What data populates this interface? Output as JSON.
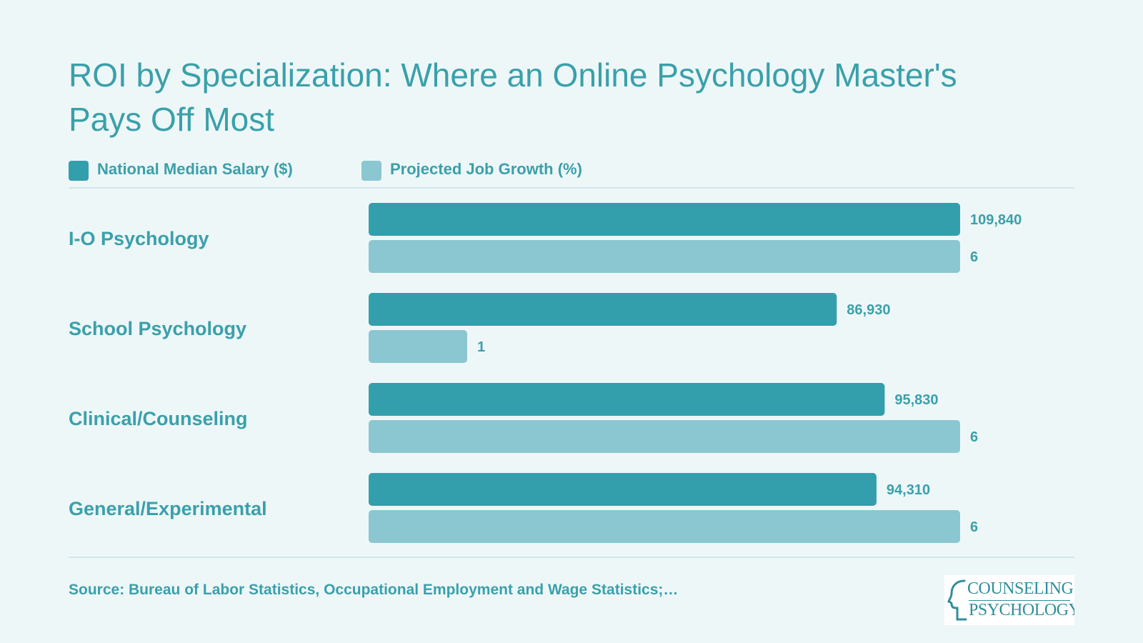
{
  "title": "ROI by Specialization: Where an Online Psychology Master's Pays Off Most",
  "legend": {
    "salary": "National Median Salary ($)",
    "growth": "Projected Job Growth (%)"
  },
  "colors": {
    "background": "#eef7f8",
    "accent": "#3aa0aa",
    "salary_bar": "#339fac",
    "growth_bar": "#8bc7d0"
  },
  "chart_data": {
    "type": "bar",
    "orientation": "horizontal",
    "categories": [
      "I-O Psychology",
      "School Psychology",
      "Clinical/Counseling",
      "General/Experimental"
    ],
    "series": [
      {
        "name": "National Median Salary ($)",
        "values": [
          109840,
          86930,
          95830,
          94310
        ],
        "labels": [
          "109,840",
          "86,930",
          "95,830",
          "94,310"
        ]
      },
      {
        "name": "Projected Job Growth (%)",
        "values": [
          6,
          1,
          6,
          6
        ],
        "labels": [
          "6",
          "1",
          "6",
          "6"
        ]
      }
    ],
    "legend_position": "top-left",
    "grid": false
  },
  "source": "Source: Bureau of Labor Statistics, Occupational Employment and Wage Statistics;…",
  "logo": {
    "line1": "COUNSELING",
    "line2": "PSYCHOLOGY"
  }
}
